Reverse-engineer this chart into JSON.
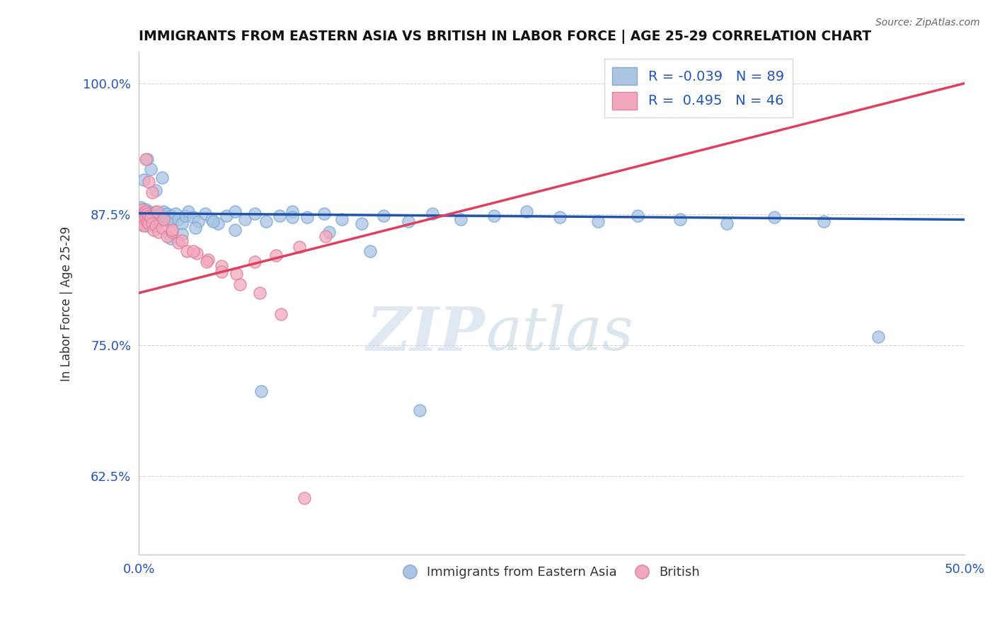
{
  "title": "IMMIGRANTS FROM EASTERN ASIA VS BRITISH IN LABOR FORCE | AGE 25-29 CORRELATION CHART",
  "source": "Source: ZipAtlas.com",
  "ylabel": "In Labor Force | Age 25-29",
  "xlim": [
    0.0,
    0.5
  ],
  "ylim": [
    0.55,
    1.03
  ],
  "yticks": [
    0.625,
    0.75,
    0.875,
    1.0
  ],
  "ytick_labels": [
    "62.5%",
    "75.0%",
    "87.5%",
    "100.0%"
  ],
  "blue_R": -0.039,
  "blue_N": 89,
  "pink_R": 0.495,
  "pink_N": 46,
  "blue_color": "#aac4e2",
  "pink_color": "#f2a8bc",
  "blue_line_color": "#2255aa",
  "pink_line_color": "#e04060",
  "legend_label_blue": "Immigrants from Eastern Asia",
  "legend_label_pink": "British",
  "watermark_zip": "ZIP",
  "watermark_atlas": "atlas",
  "blue_x": [
    0.001,
    0.001,
    0.001,
    0.001,
    0.002,
    0.002,
    0.002,
    0.002,
    0.003,
    0.003,
    0.003,
    0.003,
    0.004,
    0.004,
    0.004,
    0.005,
    0.005,
    0.005,
    0.006,
    0.006,
    0.006,
    0.007,
    0.007,
    0.008,
    0.008,
    0.009,
    0.009,
    0.01,
    0.01,
    0.011,
    0.012,
    0.013,
    0.014,
    0.015,
    0.016,
    0.017,
    0.018,
    0.019,
    0.02,
    0.022,
    0.024,
    0.026,
    0.028,
    0.03,
    0.033,
    0.036,
    0.04,
    0.044,
    0.048,
    0.053,
    0.058,
    0.064,
    0.07,
    0.077,
    0.085,
    0.093,
    0.102,
    0.112,
    0.123,
    0.135,
    0.148,
    0.163,
    0.178,
    0.195,
    0.215,
    0.235,
    0.255,
    0.278,
    0.302,
    0.328,
    0.356,
    0.385,
    0.415,
    0.448,
    0.003,
    0.005,
    0.007,
    0.01,
    0.014,
    0.019,
    0.026,
    0.034,
    0.045,
    0.058,
    0.074,
    0.093,
    0.115,
    0.14,
    0.17
  ],
  "blue_y": [
    0.878,
    0.882,
    0.875,
    0.87,
    0.88,
    0.875,
    0.87,
    0.865,
    0.878,
    0.872,
    0.868,
    0.875,
    0.88,
    0.874,
    0.868,
    0.876,
    0.87,
    0.864,
    0.878,
    0.872,
    0.866,
    0.875,
    0.87,
    0.876,
    0.868,
    0.874,
    0.866,
    0.878,
    0.87,
    0.874,
    0.868,
    0.876,
    0.87,
    0.878,
    0.872,
    0.876,
    0.868,
    0.874,
    0.87,
    0.876,
    0.87,
    0.866,
    0.874,
    0.878,
    0.872,
    0.868,
    0.876,
    0.87,
    0.866,
    0.874,
    0.878,
    0.87,
    0.876,
    0.868,
    0.874,
    0.878,
    0.872,
    0.876,
    0.87,
    0.866,
    0.874,
    0.868,
    0.876,
    0.87,
    0.874,
    0.878,
    0.872,
    0.868,
    0.874,
    0.87,
    0.866,
    0.872,
    0.868,
    0.758,
    0.908,
    0.928,
    0.918,
    0.898,
    0.91,
    0.852,
    0.856,
    0.862,
    0.868,
    0.86,
    0.706,
    0.872,
    0.858,
    0.84,
    0.688
  ],
  "pink_x": [
    0.001,
    0.001,
    0.002,
    0.002,
    0.002,
    0.003,
    0.003,
    0.003,
    0.004,
    0.004,
    0.005,
    0.005,
    0.006,
    0.006,
    0.007,
    0.008,
    0.009,
    0.01,
    0.012,
    0.014,
    0.017,
    0.02,
    0.024,
    0.029,
    0.035,
    0.042,
    0.05,
    0.059,
    0.07,
    0.083,
    0.097,
    0.113,
    0.004,
    0.006,
    0.008,
    0.011,
    0.015,
    0.02,
    0.026,
    0.033,
    0.041,
    0.05,
    0.061,
    0.073,
    0.086,
    0.1
  ],
  "pink_y": [
    0.876,
    0.87,
    0.88,
    0.872,
    0.866,
    0.876,
    0.87,
    0.864,
    0.878,
    0.872,
    0.876,
    0.868,
    0.874,
    0.866,
    0.872,
    0.866,
    0.86,
    0.864,
    0.858,
    0.862,
    0.854,
    0.858,
    0.848,
    0.84,
    0.838,
    0.832,
    0.826,
    0.818,
    0.83,
    0.836,
    0.844,
    0.854,
    0.928,
    0.906,
    0.896,
    0.878,
    0.87,
    0.86,
    0.85,
    0.84,
    0.83,
    0.82,
    0.808,
    0.8,
    0.78,
    0.604
  ],
  "blue_line_x": [
    0.0,
    0.5
  ],
  "blue_line_y": [
    0.876,
    0.87
  ],
  "pink_line_x": [
    0.0,
    0.5
  ],
  "pink_line_y": [
    0.8,
    1.0
  ]
}
